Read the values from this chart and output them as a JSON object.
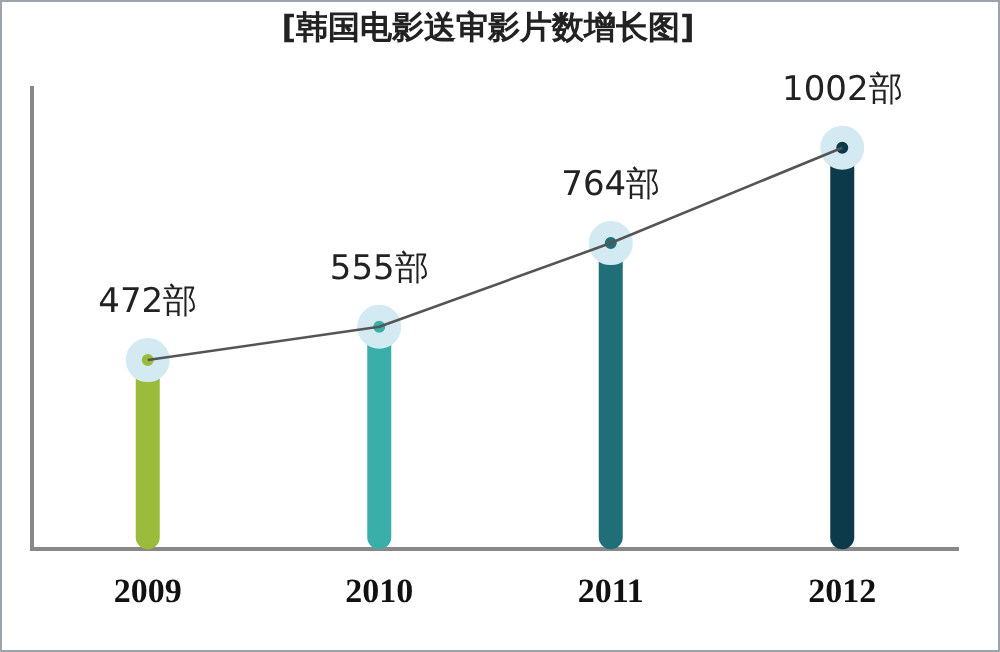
{
  "chart_data": {
    "type": "lollipop",
    "title": "[韩国电影送审影片数增长图]",
    "categories": [
      "2009",
      "2010",
      "2011",
      "2012"
    ],
    "ylim": [
      0,
      1150
    ],
    "tick_labels": "x",
    "grid": false,
    "legend": false,
    "marker": "circle",
    "series": [
      {
        "colors": [
          "#9bbb3b",
          "#3aaea8",
          "#1f6e78",
          "#0d3a4a"
        ],
        "values": [
          472,
          555,
          764,
          1002
        ],
        "value_labels": [
          "472部",
          "555部",
          "764部",
          "1002部"
        ]
      },
      {
        "type": "line",
        "color": "#555555",
        "marker": "none",
        "values": [
          472,
          555,
          764,
          1002
        ]
      }
    ]
  }
}
